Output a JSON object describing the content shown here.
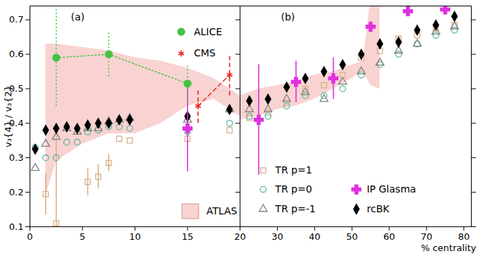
{
  "chart_data": [
    {
      "type": "scatter",
      "title": "(a)",
      "y_label": "v₃{4} / v₃{2}",
      "xlim": [
        0,
        20
      ],
      "xticks": [
        0,
        5,
        10,
        15,
        20
      ],
      "ylim": [
        0.1,
        0.74
      ],
      "yticks": [
        0.1,
        0.2,
        0.3,
        0.4,
        0.5,
        0.6,
        0.7
      ],
      "grid": false,
      "legend": "top right",
      "series": [
        {
          "name": "ATLAS",
          "type": "area",
          "color": "#f9d3d1",
          "x": [
            1.5,
            2.5,
            5,
            7.5,
            10,
            12.5,
            15,
            17.5,
            20
          ],
          "lower": [
            0.19,
            0.29,
            0.34,
            0.37,
            0.37,
            0.4,
            0.45,
            0.47,
            0.42
          ],
          "upper": [
            0.63,
            0.63,
            0.62,
            0.61,
            0.59,
            0.58,
            0.56,
            0.53,
            0.48
          ]
        },
        {
          "name": "TR p=1",
          "type": "scatter",
          "color": "#d9b088",
          "marker": "open_square",
          "x": [
            1.5,
            2.5,
            5.5,
            6.5,
            7.5,
            8.5,
            9.5,
            15,
            19
          ],
          "values": [
            0.195,
            0.11,
            0.23,
            0.245,
            0.285,
            0.355,
            0.35,
            0.355,
            0.38
          ],
          "errors": [
            0.06,
            0.29,
            0.04,
            0.035,
            0.025,
            null,
            null,
            null,
            null
          ]
        },
        {
          "name": "TR p=0",
          "type": "scatter",
          "color": "#5db89e",
          "marker": "open_circle",
          "x": [
            0.5,
            1.5,
            2.5,
            3.5,
            4.5,
            5.5,
            6.5,
            7.5,
            8.5,
            9.5,
            15,
            19
          ],
          "values": [
            0.33,
            0.3,
            0.3,
            0.345,
            0.345,
            0.375,
            0.38,
            0.39,
            0.39,
            0.385,
            0.375,
            0.4
          ]
        },
        {
          "name": "TR p=-1",
          "type": "scatter",
          "color": "#808080",
          "marker": "open_triangle",
          "x": [
            0.5,
            1.5,
            2.5,
            3.5,
            4.5,
            5.5,
            6.5,
            7.5,
            8.5,
            9.5,
            15,
            19
          ],
          "values": [
            0.27,
            0.34,
            0.36,
            0.385,
            0.375,
            0.385,
            0.385,
            0.405,
            0.41,
            0.415,
            0.41,
            0.44
          ]
        },
        {
          "name": "rcBK",
          "type": "scatter",
          "color": "#000000",
          "marker": "diamond",
          "x": [
            0.5,
            1.5,
            2.5,
            3.5,
            4.5,
            5.5,
            6.5,
            7.5,
            8.5,
            9.5,
            15,
            19
          ],
          "values": [
            0.325,
            0.38,
            0.385,
            0.39,
            0.385,
            0.395,
            0.4,
            0.4,
            0.41,
            0.41,
            0.42,
            0.44
          ]
        },
        {
          "name": "IP Glasma",
          "type": "scatter",
          "color": "#e030e0",
          "marker": "cross",
          "x": [
            15
          ],
          "values": [
            0.385
          ],
          "errors": [
            0.125
          ]
        },
        {
          "name": "ALICE",
          "type": "line",
          "color": "#45c245",
          "marker": "circle",
          "line_style": "dotted",
          "x": [
            2.5,
            7.5,
            15
          ],
          "values": [
            0.59,
            0.6,
            0.515
          ],
          "errors": [
            0.14,
            0.065,
            0.055
          ]
        },
        {
          "name": "CMS",
          "type": "line",
          "color": "#e8231f",
          "marker": "asterisk",
          "line_style": "dashed",
          "x": [
            16,
            19
          ],
          "values": [
            0.45,
            0.54
          ],
          "errors": [
            0.05,
            0.06
          ]
        }
      ]
    },
    {
      "type": "scatter",
      "title": "(b)",
      "x_label": "% centrality",
      "xlim": [
        20,
        82
      ],
      "xticks": [
        30,
        40,
        50,
        60,
        70,
        80
      ],
      "ylim": [
        0.1,
        0.74
      ],
      "yticks": [
        0.1,
        0.2,
        0.3,
        0.4,
        0.5,
        0.6,
        0.7
      ],
      "grid": false,
      "legend": "bottom left",
      "tick_labels": "x",
      "series": [
        {
          "name": "ATLAS",
          "type": "area",
          "color": "#f9d3d1",
          "x": [
            20,
            25,
            30,
            35,
            40,
            45,
            50,
            53,
            55,
            57.5
          ],
          "lower": [
            0.41,
            0.42,
            0.44,
            0.45,
            0.47,
            0.5,
            0.53,
            0.55,
            0.51,
            0.5
          ],
          "upper": [
            0.48,
            0.5,
            0.51,
            0.52,
            0.54,
            0.55,
            0.57,
            0.58,
            0.76,
            0.76
          ]
        },
        {
          "name": "TR p=1",
          "type": "scatter",
          "color": "#d9b088",
          "marker": "open_square",
          "x": [
            22.5,
            27.5,
            32.5,
            37.5,
            42.5,
            47.5,
            52.5,
            57.5,
            62.5,
            67.5,
            72.5,
            77.5
          ],
          "values": [
            0.415,
            0.43,
            0.46,
            0.5,
            0.51,
            0.54,
            0.59,
            0.61,
            0.645,
            0.655,
            0.675,
            0.685
          ]
        },
        {
          "name": "TR p=0",
          "type": "scatter",
          "color": "#5db89e",
          "marker": "open_circle",
          "x": [
            22.5,
            27.5,
            32.5,
            37.5,
            42.5,
            47.5,
            52.5,
            57.5,
            62.5,
            67.5,
            72.5,
            77.5
          ],
          "values": [
            0.42,
            0.42,
            0.45,
            0.48,
            0.48,
            0.5,
            0.54,
            0.57,
            0.6,
            0.63,
            0.655,
            0.67
          ]
        },
        {
          "name": "TR p=-1",
          "type": "scatter",
          "color": "#808080",
          "marker": "open_triangle",
          "x": [
            22.5,
            27.5,
            32.5,
            37.5,
            42.5,
            47.5,
            52.5,
            57.5,
            62.5,
            67.5,
            72.5,
            77.5
          ],
          "values": [
            0.44,
            0.44,
            0.47,
            0.49,
            0.47,
            0.52,
            0.55,
            0.575,
            0.61,
            0.63,
            0.665,
            0.68
          ]
        },
        {
          "name": "IP Glasma",
          "type": "scatter",
          "color": "#e030e0",
          "marker": "cross",
          "x": [
            25,
            35,
            45,
            55,
            65,
            75
          ],
          "values": [
            0.41,
            0.52,
            0.53,
            0.68,
            0.725,
            0.73
          ],
          "errors": [
            0.16,
            0.06,
            0.06,
            null,
            null,
            null
          ]
        },
        {
          "name": "rcBK",
          "type": "scatter",
          "color": "#000000",
          "marker": "diamond",
          "x": [
            22.5,
            27.5,
            32.5,
            37.5,
            42.5,
            47.5,
            52.5,
            57.5,
            62.5,
            67.5,
            72.5,
            77.5
          ],
          "values": [
            0.465,
            0.47,
            0.505,
            0.53,
            0.55,
            0.57,
            0.6,
            0.63,
            0.635,
            0.67,
            0.685,
            0.71
          ]
        }
      ]
    }
  ]
}
